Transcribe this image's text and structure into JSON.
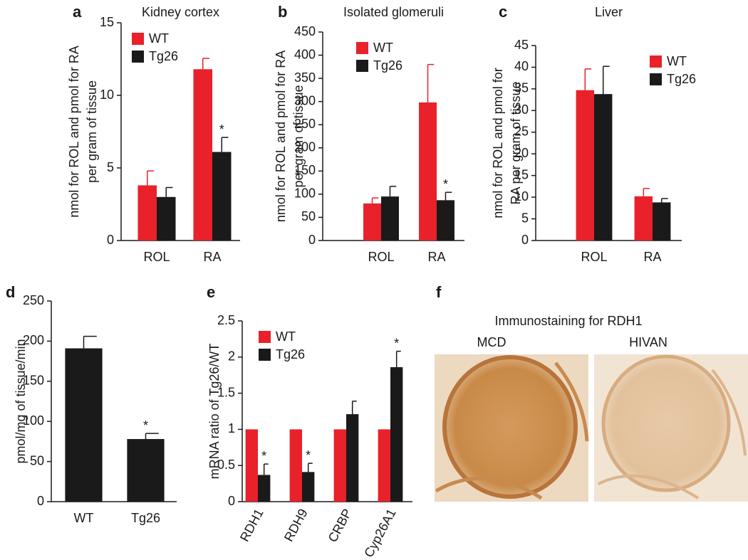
{
  "chart_data": [
    {
      "type": "bar",
      "panel": "a",
      "title": "Kidney cortex",
      "ylabel": [
        "nmol for ROL and pmol for RA",
        "per gram of tissue"
      ],
      "categories": [
        "ROL",
        "RA"
      ],
      "legend": "upper left",
      "series": [
        {
          "name": "WT",
          "color": "#e8212a",
          "values": [
            3.8,
            11.8
          ],
          "errors": [
            1.0,
            0.75
          ],
          "significance": [
            null,
            null
          ]
        },
        {
          "name": "Tg26",
          "color": "#1a1a1a",
          "values": [
            3.0,
            6.1
          ],
          "errors": [
            0.65,
            1.0
          ],
          "significance": [
            null,
            "*"
          ]
        }
      ],
      "ylim": [
        0,
        15
      ],
      "yticks": [
        0,
        5,
        10,
        15
      ]
    },
    {
      "type": "bar",
      "panel": "b",
      "title": "Isolated glomeruli",
      "ylabel": [
        "nmol for ROL and pmol for RA",
        "per gram of tissue"
      ],
      "categories": [
        "ROL",
        "RA"
      ],
      "legend": "upper left",
      "series": [
        {
          "name": "WT",
          "color": "#e8212a",
          "values": [
            80,
            298
          ],
          "errors": [
            12,
            82
          ],
          "significance": [
            null,
            null
          ]
        },
        {
          "name": "Tg26",
          "color": "#1a1a1a",
          "values": [
            95,
            87
          ],
          "errors": [
            22,
            17
          ],
          "significance": [
            null,
            "*"
          ]
        }
      ],
      "ylim": [
        0,
        450
      ],
      "yticks": [
        0,
        50,
        100,
        150,
        200,
        250,
        300,
        350,
        400,
        450
      ]
    },
    {
      "type": "bar",
      "panel": "c",
      "title": "Liver",
      "ylabel": [
        "nmol for ROL and pmol for",
        "RA per gram of tissue"
      ],
      "categories": [
        "ROL",
        "RA"
      ],
      "legend": "upper right",
      "series": [
        {
          "name": "WT",
          "color": "#e8212a",
          "values": [
            34.7,
            10.2
          ],
          "errors": [
            4.9,
            1.8
          ],
          "significance": [
            null,
            null
          ]
        },
        {
          "name": "Tg26",
          "color": "#1a1a1a",
          "values": [
            33.8,
            8.8
          ],
          "errors": [
            6.4,
            0.9
          ],
          "significance": [
            null,
            null
          ]
        }
      ],
      "ylim": [
        0,
        45
      ],
      "yticks": [
        0,
        5,
        10,
        15,
        20,
        25,
        30,
        35,
        40,
        45
      ]
    },
    {
      "type": "bar",
      "panel": "d",
      "ylabel": [
        "pmol/mg of tissue/min"
      ],
      "categories": [
        "WT",
        "Tg26"
      ],
      "color": "#1a1a1a",
      "values": [
        191,
        78
      ],
      "errors": [
        15,
        7
      ],
      "significance": [
        null,
        "*"
      ],
      "ylim": [
        0,
        250
      ],
      "yticks": [
        0,
        50,
        100,
        150,
        200,
        250
      ]
    },
    {
      "type": "bar",
      "panel": "e",
      "ylabel": [
        "mRNA ratio of Tg26/WT"
      ],
      "categories": [
        "RDH1",
        "RDH9",
        "CRBP",
        "Cyp26A1"
      ],
      "legend": "upper left",
      "rotate_labels": true,
      "series": [
        {
          "name": "WT",
          "color": "#e8212a",
          "values": [
            1,
            1,
            1,
            1
          ]
        },
        {
          "name": "Tg26",
          "color": "#1a1a1a",
          "values": [
            0.37,
            0.41,
            1.21,
            1.86
          ],
          "errors": [
            0.15,
            0.12,
            0.18,
            0.22
          ],
          "significance": [
            "*",
            "*",
            null,
            "*"
          ]
        }
      ],
      "ylim": [
        0,
        2.5
      ],
      "yticks": [
        0,
        0.5,
        1,
        1.5,
        2,
        2.5
      ]
    }
  ],
  "figure_f": {
    "panel": "f",
    "title": "Immunostaining for RDH1",
    "images": [
      "MCD",
      "HIVAN"
    ]
  }
}
